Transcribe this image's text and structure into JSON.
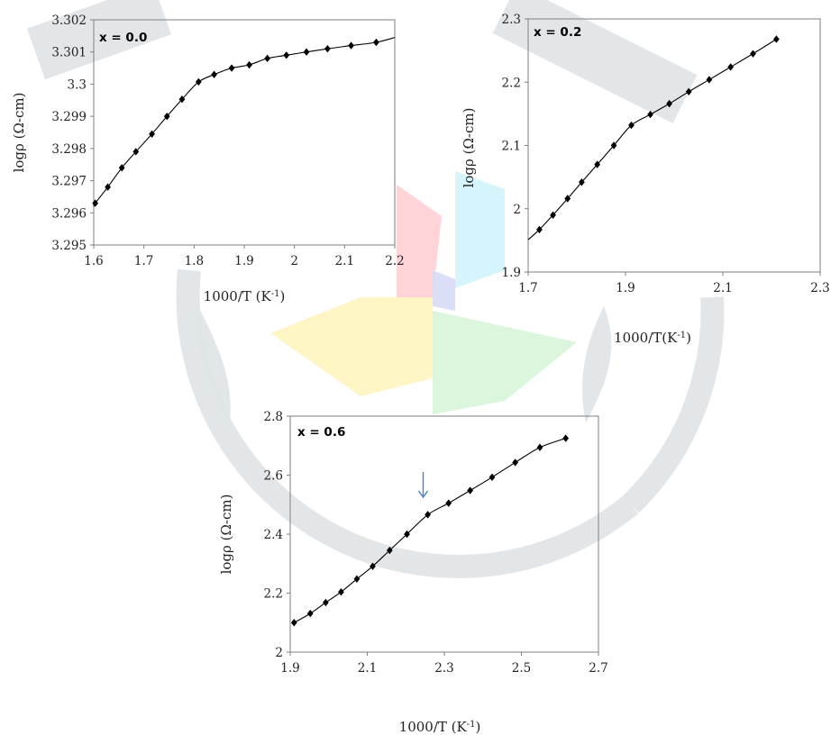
{
  "colors": {
    "line": "#000000",
    "marker": "#000000",
    "frame": "#7f7f7f",
    "arrow": "#4f81bd",
    "watermark_gray": "#dfe3e7",
    "watermark_pink": "#ffd2d6",
    "watermark_cyan": "#d4f3fb",
    "watermark_yellow": "#fff4c2",
    "watermark_green": "#daf5dc",
    "watermark_blue": "#d8dcf6"
  },
  "chart_data": [
    {
      "type": "line",
      "panel_label": "x = 0.0",
      "xlabel_main": "1000/T (K",
      "xlabel_sup": "-1",
      "xlabel_end": ")",
      "ylabel": "logρ (Ω-cm)",
      "xlim": [
        1.6,
        2.2
      ],
      "ylim": [
        3.295,
        3.302
      ],
      "xticks": [
        "1.6",
        "1.7",
        "1.8",
        "1.9",
        "2",
        "2.1",
        "2.2"
      ],
      "yticks": [
        "3.295",
        "3.296",
        "3.297",
        "3.298",
        "3.299",
        "3.3",
        "3.301",
        "3.302"
      ],
      "x": [
        1.603,
        1.628,
        1.656,
        1.684,
        1.716,
        1.746,
        1.776,
        1.809,
        1.84,
        1.875,
        1.91,
        1.946,
        1.984,
        2.024,
        2.066,
        2.113,
        2.163
      ],
      "y": [
        3.2963,
        3.2968,
        3.2974,
        3.2979,
        3.29845,
        3.299,
        3.29953,
        3.30007,
        3.3003,
        3.3005,
        3.3006,
        3.3008,
        3.3009,
        3.301,
        3.3011,
        3.3012,
        3.3013
      ],
      "curve_start": [
        1.6,
        3.2962
      ],
      "curve_end": [
        2.2,
        3.30145
      ],
      "grid": false
    },
    {
      "type": "line",
      "panel_label": "x = 0.2",
      "xlabel_main": "1000/T(K",
      "xlabel_sup": "-1",
      "xlabel_end": ")",
      "ylabel": "logρ (Ω-cm)",
      "xlim": [
        1.7,
        2.3
      ],
      "ylim": [
        1.9,
        2.3
      ],
      "xticks": [
        "1.7",
        "1.9",
        "2.1",
        "2.3"
      ],
      "yticks": [
        "1.9",
        "2",
        "2.1",
        "2.2",
        "2.3"
      ],
      "x": [
        1.723,
        1.751,
        1.781,
        1.81,
        1.842,
        1.876,
        1.912,
        1.951,
        1.99,
        2.03,
        2.072,
        2.116,
        2.162,
        2.21
      ],
      "y": [
        1.967,
        1.99,
        2.016,
        2.042,
        2.07,
        2.1,
        2.132,
        2.149,
        2.166,
        2.185,
        2.204,
        2.224,
        2.245,
        2.268
      ],
      "curve_start": [
        1.7,
        1.951
      ],
      "curve_end": [
        2.21,
        2.268
      ],
      "grid": false
    },
    {
      "type": "line",
      "panel_label": "x = 0.6",
      "xlabel_main": "1000/T (K",
      "xlabel_sup": "-1",
      "xlabel_end": ")",
      "ylabel": "logρ (Ω-cm)",
      "xlim": [
        1.9,
        2.7
      ],
      "ylim": [
        2.0,
        2.8
      ],
      "xticks": [
        "1.9",
        "2.1",
        "2.3",
        "2.5",
        "2.7"
      ],
      "yticks": [
        "2",
        "2.2",
        "2.4",
        "2.6",
        "2.8"
      ],
      "x": [
        1.91,
        1.952,
        1.992,
        2.032,
        2.073,
        2.114,
        2.158,
        2.203,
        2.257,
        2.311,
        2.367,
        2.424,
        2.484,
        2.548,
        2.615
      ],
      "y": [
        2.1,
        2.131,
        2.168,
        2.204,
        2.248,
        2.291,
        2.345,
        2.4,
        2.466,
        2.505,
        2.548,
        2.593,
        2.643,
        2.694,
        2.725
      ],
      "curve_start": [
        1.91,
        2.1
      ],
      "curve_end": [
        2.615,
        2.725
      ],
      "grid": false,
      "arrow_at_x": 2.245
    }
  ]
}
